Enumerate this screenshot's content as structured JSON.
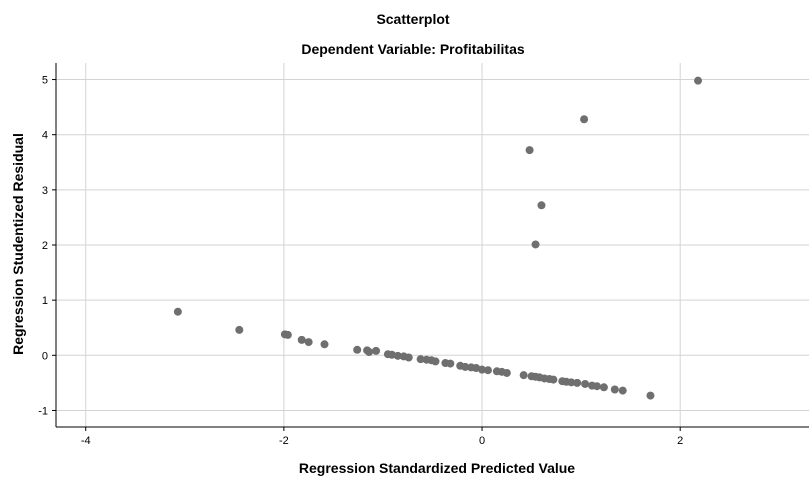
{
  "chart_data": {
    "type": "scatter",
    "title": "Scatterplot",
    "subtitle": "Dependent Variable: Profitabilitas",
    "xlabel": "Regression Standardized Predicted Value",
    "ylabel": "Regression Studentized Residual",
    "xlim": [
      -4.3,
      3.3
    ],
    "ylim": [
      -1.3,
      5.3
    ],
    "xticks": [
      "-4",
      "-2",
      "0",
      "2"
    ],
    "xtick_values": [
      -4,
      -2,
      0,
      2
    ],
    "yticks": [
      "-1",
      "0",
      "1",
      "2",
      "3",
      "4",
      "5"
    ],
    "ytick_values": [
      -1,
      0,
      1,
      2,
      3,
      4,
      5
    ],
    "grid": true,
    "point_color": "#6f6f6f",
    "grid_color": "#d3d3d3",
    "points": [
      {
        "x": -3.07,
        "y": 0.79
      },
      {
        "x": -2.45,
        "y": 0.46
      },
      {
        "x": -1.99,
        "y": 0.38
      },
      {
        "x": -1.96,
        "y": 0.37
      },
      {
        "x": -1.82,
        "y": 0.28
      },
      {
        "x": -1.75,
        "y": 0.24
      },
      {
        "x": -1.59,
        "y": 0.2
      },
      {
        "x": -1.26,
        "y": 0.1
      },
      {
        "x": -1.16,
        "y": 0.09
      },
      {
        "x": -1.14,
        "y": 0.06
      },
      {
        "x": -1.07,
        "y": 0.08
      },
      {
        "x": -0.95,
        "y": 0.02
      },
      {
        "x": -0.91,
        "y": 0.01
      },
      {
        "x": -0.85,
        "y": -0.01
      },
      {
        "x": -0.79,
        "y": -0.02
      },
      {
        "x": -0.74,
        "y": -0.04
      },
      {
        "x": -0.62,
        "y": -0.07
      },
      {
        "x": -0.56,
        "y": -0.08
      },
      {
        "x": -0.51,
        "y": -0.09
      },
      {
        "x": -0.47,
        "y": -0.11
      },
      {
        "x": -0.37,
        "y": -0.14
      },
      {
        "x": -0.32,
        "y": -0.15
      },
      {
        "x": -0.22,
        "y": -0.19
      },
      {
        "x": -0.17,
        "y": -0.21
      },
      {
        "x": -0.11,
        "y": -0.22
      },
      {
        "x": -0.06,
        "y": -0.23
      },
      {
        "x": 0.0,
        "y": -0.26
      },
      {
        "x": 0.06,
        "y": -0.27
      },
      {
        "x": 0.15,
        "y": -0.29
      },
      {
        "x": 0.2,
        "y": -0.3
      },
      {
        "x": 0.25,
        "y": -0.32
      },
      {
        "x": 0.42,
        "y": -0.36
      },
      {
        "x": 0.5,
        "y": -0.38
      },
      {
        "x": 0.54,
        "y": -0.39
      },
      {
        "x": 0.58,
        "y": -0.4
      },
      {
        "x": 0.63,
        "y": -0.42
      },
      {
        "x": 0.68,
        "y": -0.43
      },
      {
        "x": 0.72,
        "y": -0.44
      },
      {
        "x": 0.81,
        "y": -0.47
      },
      {
        "x": 0.85,
        "y": -0.48
      },
      {
        "x": 0.9,
        "y": -0.49
      },
      {
        "x": 0.96,
        "y": -0.5
      },
      {
        "x": 1.04,
        "y": -0.52
      },
      {
        "x": 1.11,
        "y": -0.55
      },
      {
        "x": 1.16,
        "y": -0.56
      },
      {
        "x": 1.23,
        "y": -0.58
      },
      {
        "x": 1.34,
        "y": -0.62
      },
      {
        "x": 1.42,
        "y": -0.64
      },
      {
        "x": 1.7,
        "y": -0.73
      },
      {
        "x": 0.48,
        "y": 3.72
      },
      {
        "x": 1.03,
        "y": 4.28
      },
      {
        "x": 0.6,
        "y": 2.72
      },
      {
        "x": 0.54,
        "y": 2.01
      },
      {
        "x": 2.18,
        "y": 4.98
      }
    ]
  }
}
